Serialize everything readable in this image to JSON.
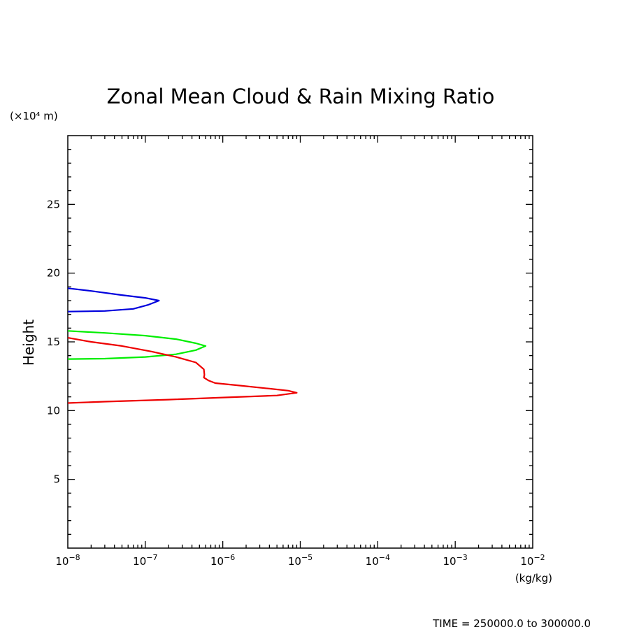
{
  "chart_data": {
    "type": "line",
    "title": "Zonal Mean Cloud & Rain Mixing Ratio",
    "ylabel": "Height",
    "y_unit": "(×10⁴ m)",
    "x_unit": "(kg/kg)",
    "footer": "TIME = 250000.0 to 300000.0",
    "xscale": "log",
    "xlim": [
      1e-08,
      0.01
    ],
    "ylim": [
      0,
      30
    ],
    "x_ticks": [
      {
        "base": "10",
        "exp": "−8",
        "value": 1e-08
      },
      {
        "base": "10",
        "exp": "−7",
        "value": 1e-07
      },
      {
        "base": "10",
        "exp": "−6",
        "value": 1e-06
      },
      {
        "base": "10",
        "exp": "−5",
        "value": 1e-05
      },
      {
        "base": "10",
        "exp": "−4",
        "value": 0.0001
      },
      {
        "base": "10",
        "exp": "−3",
        "value": 0.001
      },
      {
        "base": "10",
        "exp": "−2",
        "value": 0.01
      }
    ],
    "y_ticks": [
      {
        "label": "5",
        "value": 5
      },
      {
        "label": "10",
        "value": 10
      },
      {
        "label": "15",
        "value": 15
      },
      {
        "label": "20",
        "value": 20
      },
      {
        "label": "25",
        "value": 25
      }
    ],
    "series": [
      {
        "color": "#0000dd",
        "points": [
          [
            1e-08,
            18.9
          ],
          [
            2e-08,
            18.7
          ],
          [
            5e-08,
            18.4
          ],
          [
            1e-07,
            18.2
          ],
          [
            1.5e-07,
            18.0
          ],
          [
            1.1e-07,
            17.7
          ],
          [
            7e-08,
            17.4
          ],
          [
            3e-08,
            17.25
          ],
          [
            1e-08,
            17.2
          ]
        ]
      },
      {
        "color": "#00ee00",
        "points": [
          [
            1e-08,
            15.8
          ],
          [
            3e-08,
            15.65
          ],
          [
            1e-07,
            15.45
          ],
          [
            2.5e-07,
            15.2
          ],
          [
            4.5e-07,
            14.9
          ],
          [
            6e-07,
            14.7
          ],
          [
            4.5e-07,
            14.4
          ],
          [
            2.5e-07,
            14.1
          ],
          [
            1e-07,
            13.9
          ],
          [
            3e-08,
            13.78
          ],
          [
            1e-08,
            13.75
          ]
        ]
      },
      {
        "color": "#ee0000",
        "points": [
          [
            1e-08,
            15.3
          ],
          [
            2e-08,
            15.0
          ],
          [
            5e-08,
            14.7
          ],
          [
            1.2e-07,
            14.3
          ],
          [
            2.5e-07,
            13.9
          ],
          [
            4.5e-07,
            13.5
          ],
          [
            5.7e-07,
            13.0
          ],
          [
            5.8e-07,
            12.6
          ],
          [
            5.7e-07,
            12.4
          ],
          [
            6.5e-07,
            12.2
          ],
          [
            8e-07,
            12.0
          ],
          [
            1.5e-06,
            11.85
          ],
          [
            4e-06,
            11.6
          ],
          [
            7e-06,
            11.45
          ],
          [
            9e-06,
            11.3
          ],
          [
            5e-06,
            11.1
          ],
          [
            1e-06,
            10.95
          ],
          [
            2e-07,
            10.8
          ],
          [
            3e-08,
            10.65
          ],
          [
            1e-08,
            10.55
          ]
        ]
      }
    ]
  }
}
